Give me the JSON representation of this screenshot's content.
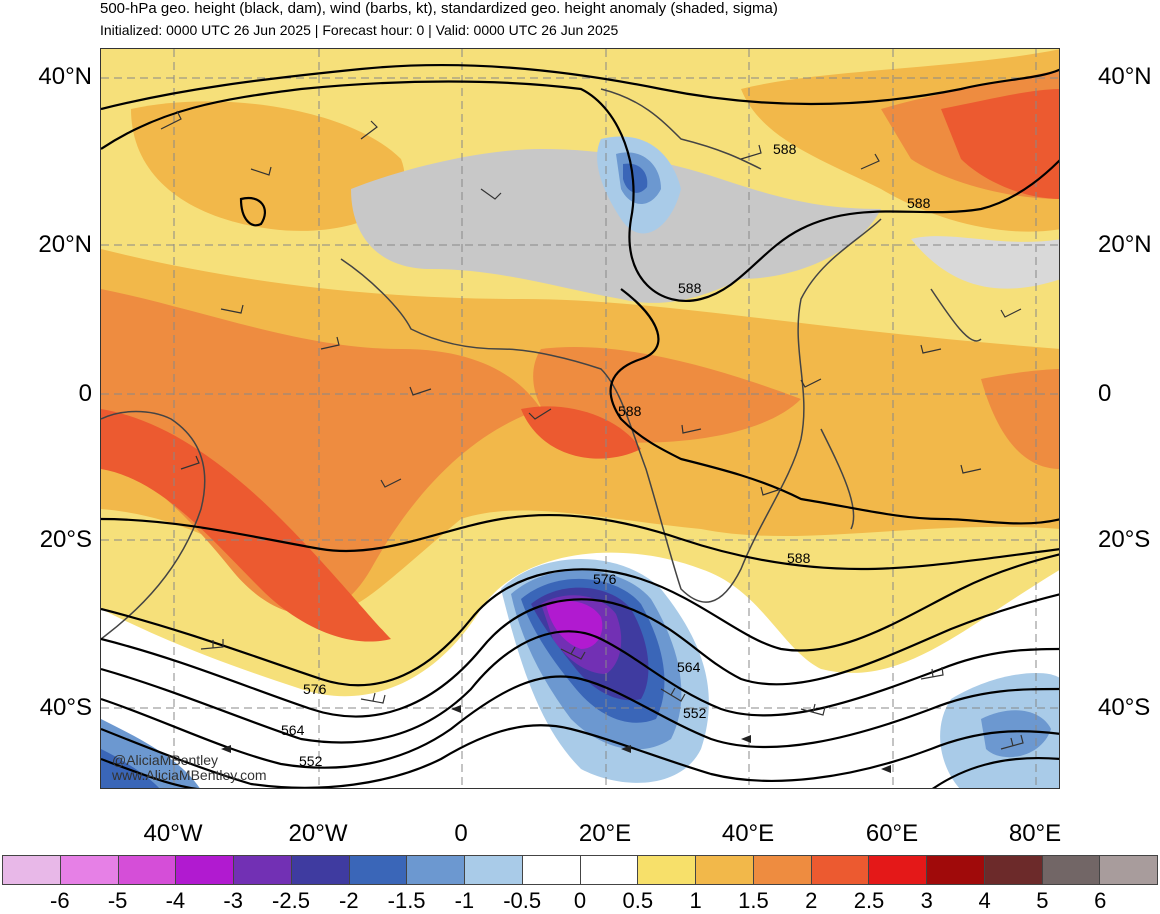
{
  "header": {
    "title": "500-hPa geo. height (black, dam), wind (barbs, kt), standardized geo. height anomaly (shaded, sigma)",
    "subtitle": "Initialized: 0000 UTC 26 Jun 2025 | Forecast hour: 0 | Valid: 0000 UTC 26 Jun 2025"
  },
  "latitude_labels": [
    "40°N",
    "20°N",
    "0",
    "20°S",
    "40°S"
  ],
  "longitude_labels": [
    "40°W",
    "20°W",
    "0",
    "20°E",
    "40°E",
    "60°E",
    "80°E"
  ],
  "contour_labels": [
    {
      "text": "588"
    },
    {
      "text": "588"
    },
    {
      "text": "588"
    },
    {
      "text": "588"
    },
    {
      "text": "588"
    },
    {
      "text": "576"
    },
    {
      "text": "564"
    },
    {
      "text": "552"
    },
    {
      "text": "576"
    },
    {
      "text": "564"
    },
    {
      "text": "552"
    }
  ],
  "credits": {
    "line1": "@AliciaMBentley",
    "line2": "www.AliciaMBentley.com"
  },
  "colorbar": {
    "colors": [
      "#e8b8e8",
      "#e680e6",
      "#d54ed8",
      "#b11ad0",
      "#7230b4",
      "#3f3ba0",
      "#3a66b8",
      "#6c98d0",
      "#a9cbe8",
      "#ffffff",
      "#ffffff",
      "#f7e06a",
      "#f2b84a",
      "#ee8c40",
      "#ec5a30",
      "#e41818",
      "#a00a0a",
      "#6c2a2a",
      "#726666",
      "#a89c9c"
    ],
    "tick_labels": [
      "-6",
      "-5",
      "-4",
      "-3",
      "-2.5",
      "-2",
      "-1.5",
      "-1",
      "-0.5",
      "0",
      "0.5",
      "1",
      "1.5",
      "2",
      "2.5",
      "3",
      "4",
      "5",
      "6"
    ]
  }
}
